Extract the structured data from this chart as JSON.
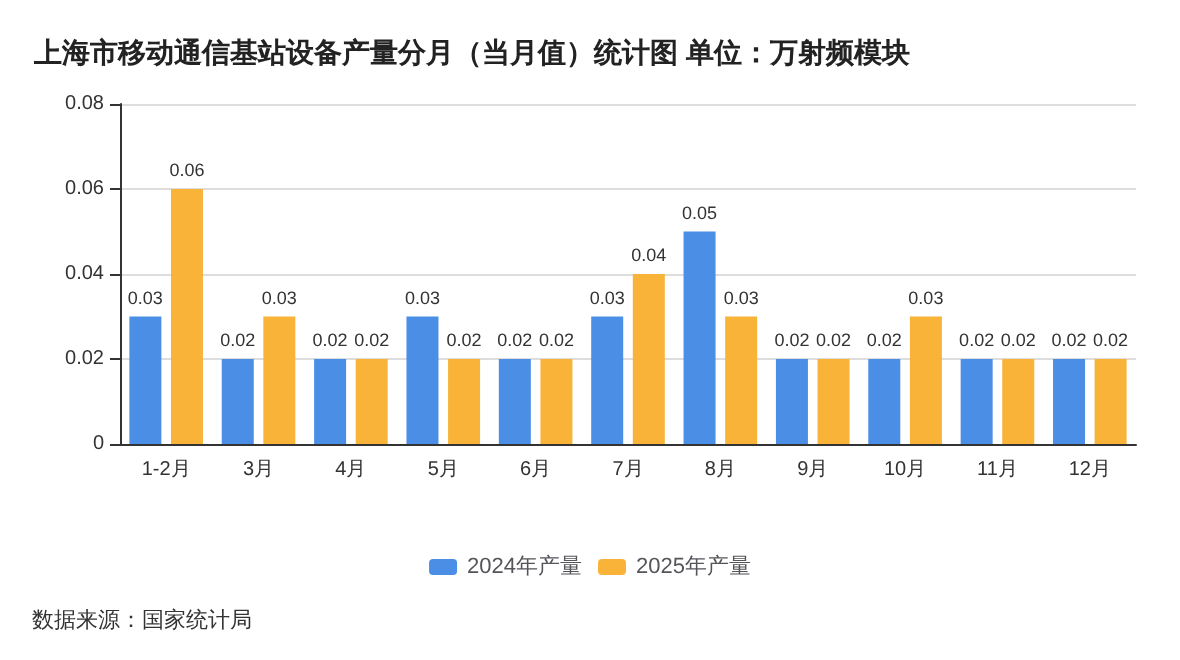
{
  "chart_data": {
    "type": "bar",
    "title": "上海市移动通信基站设备产量分月（当月值）统计图 单位：万射频模块",
    "categories": [
      "1-2月",
      "3月",
      "4月",
      "5月",
      "6月",
      "7月",
      "8月",
      "9月",
      "10月",
      "11月",
      "12月"
    ],
    "series": [
      {
        "name": "2024年产量",
        "color": "#4a8ee6",
        "values": [
          0.03,
          0.02,
          0.02,
          0.03,
          0.02,
          0.03,
          0.05,
          0.02,
          0.02,
          0.02,
          0.02
        ]
      },
      {
        "name": "2025年产量",
        "color": "#f8b338",
        "values": [
          0.06,
          0.03,
          0.02,
          0.02,
          0.02,
          0.04,
          0.03,
          0.02,
          0.03,
          0.02,
          0.02
        ]
      }
    ],
    "ylim": [
      0,
      0.08
    ],
    "yticks": [
      0,
      0.02,
      0.04,
      0.06,
      0.08
    ],
    "grid": "y",
    "legend": "bottom",
    "data_labels": true,
    "annotations": [
      "数据来源：国家统计局"
    ]
  }
}
